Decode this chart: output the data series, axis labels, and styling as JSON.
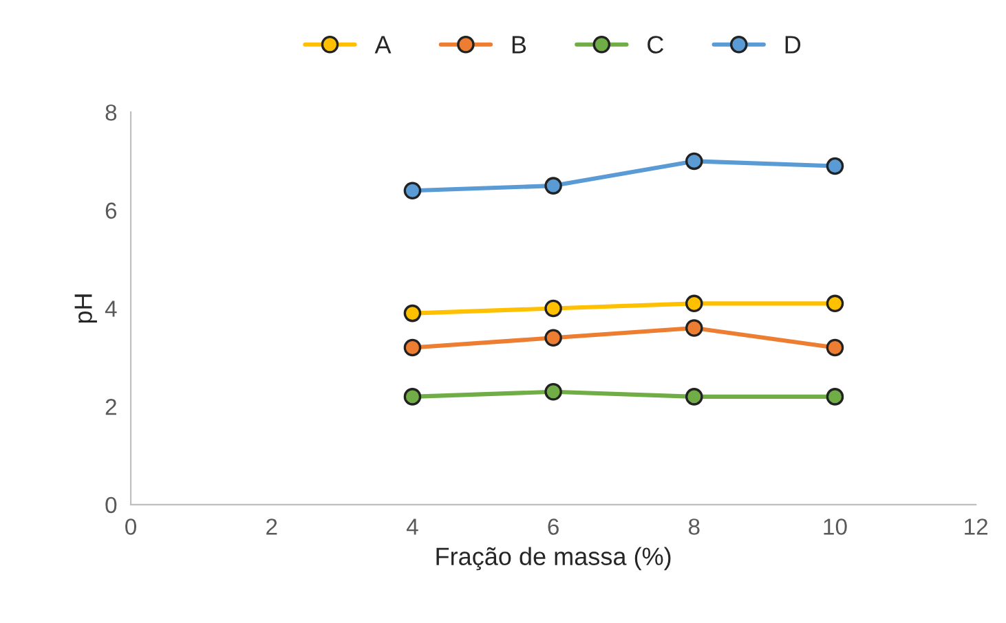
{
  "chart_data": {
    "type": "line",
    "xlabel": "Fração de massa (%)",
    "ylabel": "pH",
    "x": [
      4,
      6,
      8,
      10
    ],
    "series": [
      {
        "name": "A",
        "color": "#ffc000",
        "values": [
          3.9,
          4.0,
          4.1,
          4.1
        ]
      },
      {
        "name": "B",
        "color": "#ed7d31",
        "values": [
          3.2,
          3.4,
          3.6,
          3.2
        ]
      },
      {
        "name": "C",
        "color": "#70ad47",
        "values": [
          2.2,
          2.3,
          2.2,
          2.2
        ]
      },
      {
        "name": "D",
        "color": "#5b9bd5",
        "values": [
          6.4,
          6.5,
          7.0,
          6.9
        ]
      }
    ],
    "xlim": [
      0,
      12
    ],
    "xticks": [
      0,
      2,
      4,
      6,
      8,
      10,
      12
    ],
    "ylim": [
      0,
      8
    ],
    "yticks": [
      0,
      2,
      4,
      6,
      8
    ],
    "grid": false,
    "legend": "top",
    "marker": "circle",
    "line_style": "solid"
  }
}
